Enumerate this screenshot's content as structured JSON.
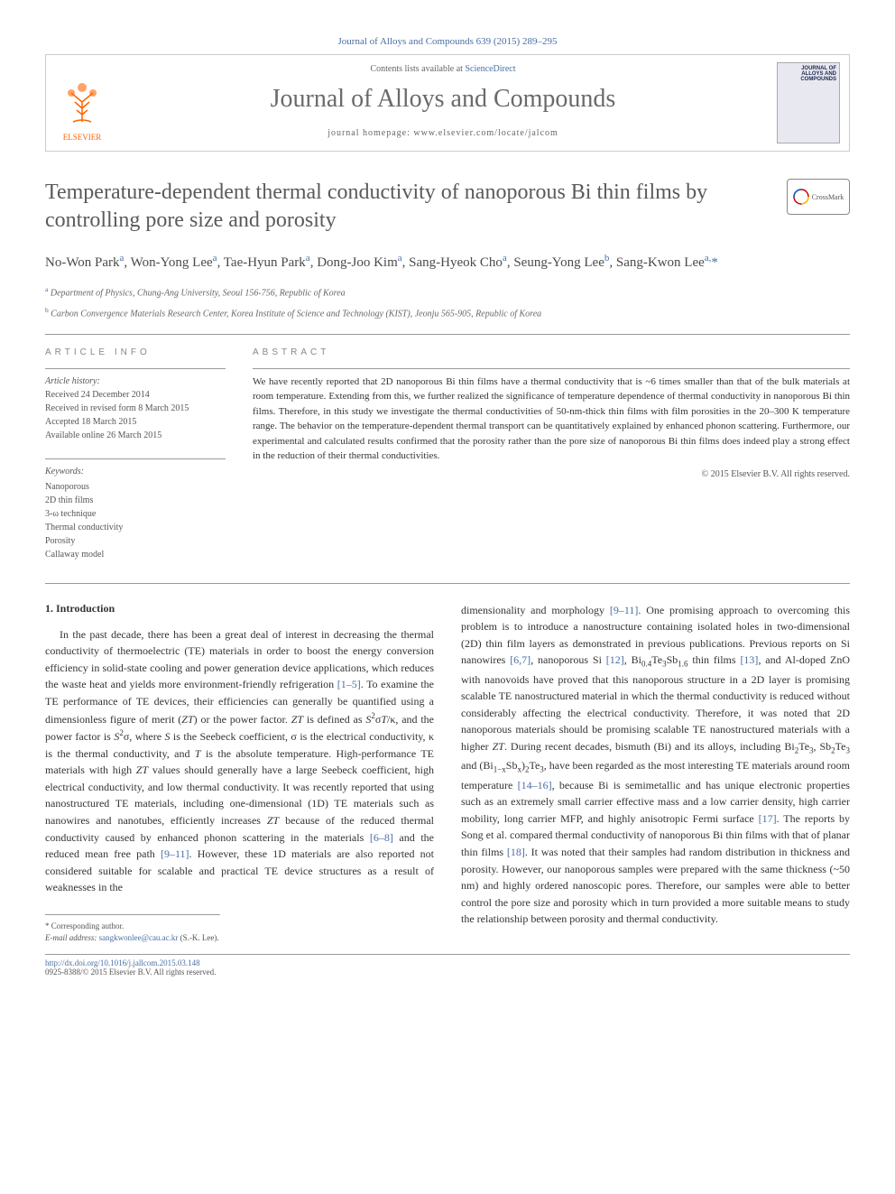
{
  "citation": "Journal of Alloys and Compounds 639 (2015) 289–295",
  "banner": {
    "contents_prefix": "Contents lists available at ",
    "contents_link": "ScienceDirect",
    "journal": "Journal of Alloys and Compounds",
    "homepage_prefix": "journal homepage: ",
    "homepage_url": "www.elsevier.com/locate/jalcom",
    "publisher": "ELSEVIER",
    "cover_text": "JOURNAL OF ALLOYS AND COMPOUNDS"
  },
  "crossmark": "CrossMark",
  "title": "Temperature-dependent thermal conductivity of nanoporous Bi thin films by controlling pore size and porosity",
  "authors_html": "No-Won Park<span class='aff'>a</span>, Won-Yong Lee<span class='aff'>a</span>, Tae-Hyun Park<span class='aff'>a</span>, Dong-Joo Kim<span class='aff'>a</span>, Sang-Hyeok Cho<span class='aff'>a</span>, Seung-Yong Lee<span class='aff'>b</span>, Sang-Kwon Lee<span class='aff'>a,</span><span class='corr'>*</span>",
  "affiliations": [
    {
      "label": "a",
      "text": "Department of Physics, Chung-Ang University, Seoul 156-756, Republic of Korea"
    },
    {
      "label": "b",
      "text": "Carbon Convergence Materials Research Center, Korea Institute of Science and Technology (KIST), Jeonju 565-905, Republic of Korea"
    }
  ],
  "headers": {
    "info": "ARTICLE INFO",
    "abstract": "ABSTRACT"
  },
  "history": {
    "label": "Article history:",
    "received": "Received 24 December 2014",
    "revised": "Received in revised form 8 March 2015",
    "accepted": "Accepted 18 March 2015",
    "online": "Available online 26 March 2015"
  },
  "keywords": {
    "label": "Keywords:",
    "items": [
      "Nanoporous",
      "2D thin films",
      "3-ω technique",
      "Thermal conductivity",
      "Porosity",
      "Callaway model"
    ]
  },
  "abstract": "We have recently reported that 2D nanoporous Bi thin films have a thermal conductivity that is ~6 times smaller than that of the bulk materials at room temperature. Extending from this, we further realized the significance of temperature dependence of thermal conductivity in nanoporous Bi thin films. Therefore, in this study we investigate the thermal conductivities of 50-nm-thick thin films with film porosities in the 20–300 K temperature range. The behavior on the temperature-dependent thermal transport can be quantitatively explained by enhanced phonon scattering. Furthermore, our experimental and calculated results confirmed that the porosity rather than the pore size of nanoporous Bi thin films does indeed play a strong effect in the reduction of their thermal conductivities.",
  "copyright": "© 2015 Elsevier B.V. All rights reserved.",
  "section1_title": "1. Introduction",
  "body_left_html": "<span class='indent'>In the past decade, there has been a great deal of interest in decreasing the thermal conductivity of thermoelectric (TE) materials in order to boost the energy conversion efficiency in solid-state cooling and power generation device applications, which reduces the waste heat and yields more environment-friendly refrigeration <span class='ref'>[1–5]</span>. To examine the TE performance of TE devices, their efficiencies can generally be quantified using a dimensionless figure of merit (<i>ZT</i>) or the power factor. <i>ZT</i> is defined as <i>S</i><sup>2</sup>σ<i>T</i>/κ, and the power factor is <i>S</i><sup>2</sup>σ, where <i>S</i> is the Seebeck coefficient, σ is the electrical conductivity, κ is the thermal conductivity, and <i>T</i> is the absolute temperature. High-performance TE materials with high <i>ZT</i> values should generally have a large Seebeck coefficient, high electrical conductivity, and low thermal conductivity. It was recently reported that using nanostructured TE materials, including one-dimensional (1D) TE materials such as nanowires and nanotubes, efficiently increases <i>ZT</i> because of the reduced thermal conductivity caused by enhanced phonon scattering in the materials <span class='ref'>[6–8]</span> and the reduced mean free path <span class='ref'>[9–11]</span>. However, these 1D materials are also reported not considered suitable for scalable and practical TE device structures as a result of weaknesses in the</span>",
  "body_right_html": "dimensionality and morphology <span class='ref'>[9–11]</span>. One promising approach to overcoming this problem is to introduce a nanostructure containing isolated holes in two-dimensional (2D) thin film layers as demonstrated in previous publications. Previous reports on Si nanowires <span class='ref'>[6,7]</span>, nanoporous Si <span class='ref'>[12]</span>, Bi<sub>0.4</sub>Te<sub>3</sub>Sb<sub>1.6</sub> thin films <span class='ref'>[13]</span>, and Al-doped ZnO with nanovoids have proved that this nanoporous structure in a 2D layer is promising scalable TE nanostructured material in which the thermal conductivity is reduced without considerably affecting the electrical conductivity. Therefore, it was noted that 2D nanoporous materials should be promising scalable TE nanostructured materials with a higher <i>ZT</i>. During recent decades, bismuth (Bi) and its alloys, including Bi<sub>2</sub>Te<sub>3</sub>, Sb<sub>2</sub>Te<sub>3</sub> and (Bi<sub>1−x</sub>Sb<sub>x</sub>)<sub>2</sub>Te<sub>3</sub>, have been regarded as the most interesting TE materials around room temperature <span class='ref'>[14–16]</span>, because Bi is semimetallic and has unique electronic properties such as an extremely small carrier effective mass and a low carrier density, high carrier mobility, long carrier MFP, and highly anisotropic Fermi surface <span class='ref'>[17]</span>. The reports by Song et al. compared thermal conductivity of nanoporous Bi thin films with that of planar thin films <span class='ref'>[18]</span>. It was noted that their samples had random distribution in thickness and porosity. However, our nanoporous samples were prepared with the same thickness (~50 nm) and highly ordered nanoscopic pores. Therefore, our samples were able to better control the pore size and porosity which in turn provided a more suitable means to study the relationship between porosity and thermal conductivity.",
  "corr_footer": {
    "label": "* Corresponding author.",
    "email_label": "E-mail address: ",
    "email": "sangkwonlee@cau.ac.kr",
    "email_who": " (S.-K. Lee)."
  },
  "page_footer": {
    "doi": "http://dx.doi.org/10.1016/j.jallcom.2015.03.148",
    "issn": "0925-8388/© 2015 Elsevier B.V. All rights reserved."
  },
  "colors": {
    "link": "#4a6fa5",
    "heading_grey": "#5a5a5a",
    "text": "#333333",
    "orange": "#ff6600"
  }
}
